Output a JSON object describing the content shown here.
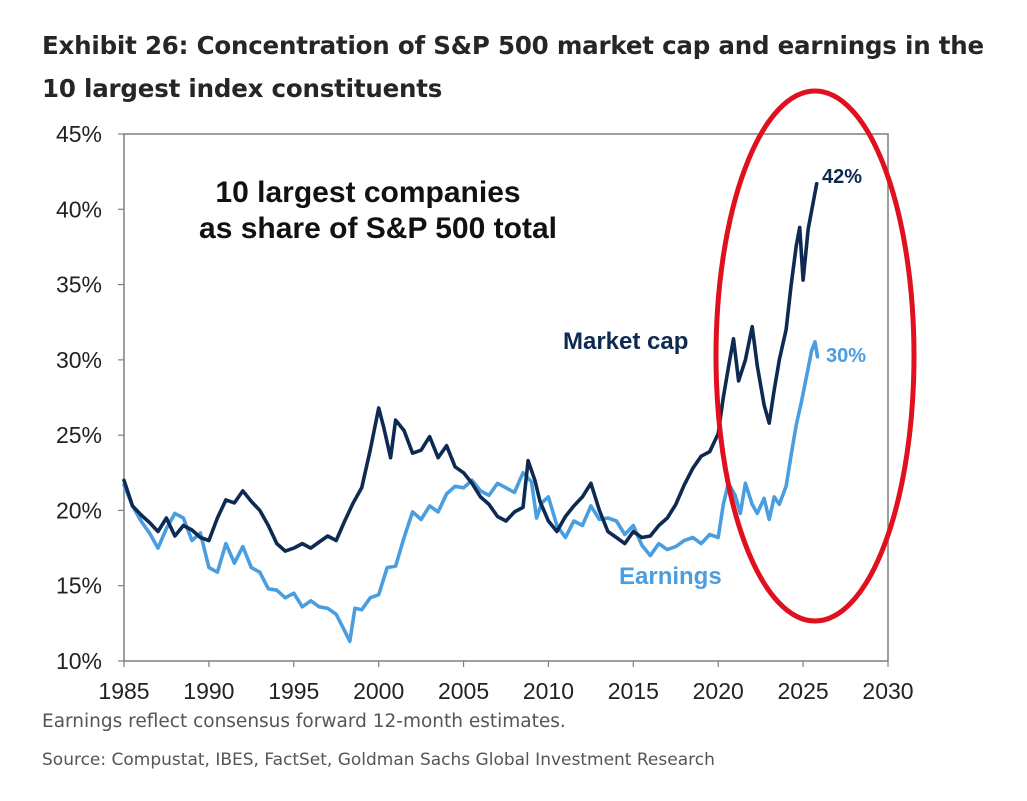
{
  "header": {
    "title_line1": "Exhibit 26: Concentration of S&P 500 market cap and earnings in the",
    "title_line2": "10 largest index constituents"
  },
  "footer": {
    "note": "Earnings reflect consensus forward 12-month estimates.",
    "source": "Source: Compustat, IBES, FactSet, Goldman Sachs Global Investment Research"
  },
  "colors": {
    "market_cap": "#0e2a52",
    "earnings": "#4a9ee0",
    "highlight_ellipse": "#e0101e",
    "axis": "#7f7f7f",
    "text": "#262626"
  },
  "chart_data": {
    "type": "line",
    "title": "10 largest companies as share of S&P 500 total",
    "title_lines": [
      "10 largest companies",
      "as share of S&P 500 total"
    ],
    "xlabel": "",
    "ylabel": "",
    "xlim": [
      1985,
      2030
    ],
    "ylim": [
      10,
      45
    ],
    "x_ticks": [
      1985,
      1990,
      1995,
      2000,
      2005,
      2010,
      2015,
      2020,
      2025,
      2030
    ],
    "y_ticks": [
      10,
      15,
      20,
      25,
      30,
      35,
      40,
      45
    ],
    "y_tick_labels": [
      "10%",
      "15%",
      "20%",
      "25%",
      "30%",
      "35%",
      "40%",
      "45%"
    ],
    "grid": false,
    "series": [
      {
        "name": "Market cap",
        "label": "Market cap",
        "end_label": "42%",
        "color": "#0e2a52",
        "points": [
          [
            1985.0,
            22.0
          ],
          [
            1985.5,
            20.3
          ],
          [
            1986.0,
            19.7
          ],
          [
            1986.5,
            19.2
          ],
          [
            1987.0,
            18.6
          ],
          [
            1987.5,
            19.5
          ],
          [
            1988.0,
            18.3
          ],
          [
            1988.5,
            19.0
          ],
          [
            1989.0,
            18.7
          ],
          [
            1989.5,
            18.2
          ],
          [
            1990.0,
            18.0
          ],
          [
            1990.5,
            19.5
          ],
          [
            1991.0,
            20.7
          ],
          [
            1991.5,
            20.5
          ],
          [
            1992.0,
            21.3
          ],
          [
            1992.5,
            20.6
          ],
          [
            1993.0,
            20.0
          ],
          [
            1993.5,
            19.0
          ],
          [
            1994.0,
            17.8
          ],
          [
            1994.5,
            17.3
          ],
          [
            1995.0,
            17.5
          ],
          [
            1995.5,
            17.8
          ],
          [
            1996.0,
            17.5
          ],
          [
            1996.5,
            17.9
          ],
          [
            1997.0,
            18.3
          ],
          [
            1997.5,
            18.0
          ],
          [
            1998.0,
            19.3
          ],
          [
            1998.5,
            20.5
          ],
          [
            1999.0,
            21.5
          ],
          [
            1999.5,
            24.0
          ],
          [
            2000.0,
            26.8
          ],
          [
            2000.3,
            25.5
          ],
          [
            2000.7,
            23.5
          ],
          [
            2001.0,
            26.0
          ],
          [
            2001.5,
            25.3
          ],
          [
            2002.0,
            23.8
          ],
          [
            2002.5,
            24.0
          ],
          [
            2003.0,
            24.9
          ],
          [
            2003.5,
            23.5
          ],
          [
            2004.0,
            24.3
          ],
          [
            2004.5,
            22.9
          ],
          [
            2005.0,
            22.5
          ],
          [
            2005.5,
            21.8
          ],
          [
            2006.0,
            20.9
          ],
          [
            2006.5,
            20.4
          ],
          [
            2007.0,
            19.6
          ],
          [
            2007.5,
            19.3
          ],
          [
            2008.0,
            19.9
          ],
          [
            2008.5,
            20.2
          ],
          [
            2008.8,
            23.3
          ],
          [
            2009.2,
            22.0
          ],
          [
            2009.5,
            20.6
          ],
          [
            2010.0,
            19.3
          ],
          [
            2010.5,
            18.6
          ],
          [
            2011.0,
            19.6
          ],
          [
            2011.5,
            20.3
          ],
          [
            2012.0,
            20.9
          ],
          [
            2012.5,
            21.8
          ],
          [
            2013.0,
            20.0
          ],
          [
            2013.5,
            18.6
          ],
          [
            2014.0,
            18.2
          ],
          [
            2014.5,
            17.8
          ],
          [
            2015.0,
            18.6
          ],
          [
            2015.5,
            18.2
          ],
          [
            2016.0,
            18.3
          ],
          [
            2016.5,
            19.0
          ],
          [
            2017.0,
            19.5
          ],
          [
            2017.5,
            20.4
          ],
          [
            2018.0,
            21.7
          ],
          [
            2018.5,
            22.8
          ],
          [
            2019.0,
            23.6
          ],
          [
            2019.5,
            23.9
          ],
          [
            2020.0,
            25.1
          ],
          [
            2020.3,
            27.5
          ],
          [
            2020.6,
            29.5
          ],
          [
            2020.9,
            31.4
          ],
          [
            2021.2,
            28.6
          ],
          [
            2021.6,
            30.0
          ],
          [
            2022.0,
            32.2
          ],
          [
            2022.3,
            29.6
          ],
          [
            2022.7,
            27.0
          ],
          [
            2023.0,
            25.8
          ],
          [
            2023.3,
            28.0
          ],
          [
            2023.6,
            30.0
          ],
          [
            2024.0,
            32.0
          ],
          [
            2024.3,
            35.0
          ],
          [
            2024.6,
            37.6
          ],
          [
            2024.8,
            38.8
          ],
          [
            2025.0,
            35.3
          ],
          [
            2025.3,
            38.7
          ],
          [
            2025.6,
            40.5
          ],
          [
            2025.8,
            41.7
          ]
        ]
      },
      {
        "name": "Earnings",
        "label": "Earnings",
        "end_label": "30%",
        "color": "#4a9ee0",
        "points": [
          [
            1985.0,
            21.7
          ],
          [
            1985.5,
            20.3
          ],
          [
            1986.0,
            19.3
          ],
          [
            1986.5,
            18.5
          ],
          [
            1987.0,
            17.5
          ],
          [
            1987.5,
            18.8
          ],
          [
            1988.0,
            19.8
          ],
          [
            1988.5,
            19.5
          ],
          [
            1989.0,
            18.0
          ],
          [
            1989.5,
            18.5
          ],
          [
            1990.0,
            16.2
          ],
          [
            1990.5,
            15.9
          ],
          [
            1991.0,
            17.8
          ],
          [
            1991.5,
            16.5
          ],
          [
            1992.0,
            17.6
          ],
          [
            1992.5,
            16.2
          ],
          [
            1993.0,
            15.9
          ],
          [
            1993.5,
            14.8
          ],
          [
            1994.0,
            14.7
          ],
          [
            1994.5,
            14.2
          ],
          [
            1995.0,
            14.5
          ],
          [
            1995.5,
            13.6
          ],
          [
            1996.0,
            14.0
          ],
          [
            1996.5,
            13.6
          ],
          [
            1997.0,
            13.5
          ],
          [
            1997.5,
            13.1
          ],
          [
            1998.0,
            12.0
          ],
          [
            1998.3,
            11.3
          ],
          [
            1998.6,
            13.5
          ],
          [
            1999.0,
            13.4
          ],
          [
            1999.5,
            14.2
          ],
          [
            2000.0,
            14.4
          ],
          [
            2000.5,
            16.2
          ],
          [
            2001.0,
            16.3
          ],
          [
            2001.5,
            18.2
          ],
          [
            2002.0,
            19.9
          ],
          [
            2002.5,
            19.4
          ],
          [
            2003.0,
            20.3
          ],
          [
            2003.5,
            19.9
          ],
          [
            2004.0,
            21.1
          ],
          [
            2004.5,
            21.6
          ],
          [
            2005.0,
            21.5
          ],
          [
            2005.5,
            22.0
          ],
          [
            2006.0,
            21.3
          ],
          [
            2006.5,
            21.0
          ],
          [
            2007.0,
            21.8
          ],
          [
            2007.5,
            21.5
          ],
          [
            2008.0,
            21.2
          ],
          [
            2008.5,
            22.5
          ],
          [
            2009.0,
            21.9
          ],
          [
            2009.3,
            19.5
          ],
          [
            2009.6,
            20.5
          ],
          [
            2010.0,
            20.9
          ],
          [
            2010.5,
            19.0
          ],
          [
            2011.0,
            18.2
          ],
          [
            2011.5,
            19.3
          ],
          [
            2012.0,
            19.0
          ],
          [
            2012.5,
            20.3
          ],
          [
            2013.0,
            19.4
          ],
          [
            2013.5,
            19.5
          ],
          [
            2014.0,
            19.3
          ],
          [
            2014.5,
            18.4
          ],
          [
            2015.0,
            19.0
          ],
          [
            2015.5,
            17.7
          ],
          [
            2016.0,
            17.0
          ],
          [
            2016.5,
            17.8
          ],
          [
            2017.0,
            17.4
          ],
          [
            2017.5,
            17.6
          ],
          [
            2018.0,
            18.0
          ],
          [
            2018.5,
            18.2
          ],
          [
            2019.0,
            17.8
          ],
          [
            2019.5,
            18.4
          ],
          [
            2020.0,
            18.2
          ],
          [
            2020.3,
            20.4
          ],
          [
            2020.6,
            21.8
          ],
          [
            2021.0,
            21.0
          ],
          [
            2021.3,
            19.8
          ],
          [
            2021.6,
            21.8
          ],
          [
            2022.0,
            20.4
          ],
          [
            2022.3,
            19.8
          ],
          [
            2022.7,
            20.8
          ],
          [
            2023.0,
            19.4
          ],
          [
            2023.3,
            20.9
          ],
          [
            2023.6,
            20.4
          ],
          [
            2024.0,
            21.6
          ],
          [
            2024.3,
            23.7
          ],
          [
            2024.6,
            25.7
          ],
          [
            2024.9,
            27.2
          ],
          [
            2025.2,
            28.9
          ],
          [
            2025.5,
            30.6
          ],
          [
            2025.7,
            31.2
          ],
          [
            2025.85,
            30.2
          ]
        ]
      }
    ],
    "annotations": [
      {
        "text": "Highlighted region: 2020–2025",
        "kind": "ellipse",
        "x_range": [
          2020,
          2026
        ],
        "y_range": [
          12,
          46
        ]
      }
    ]
  }
}
